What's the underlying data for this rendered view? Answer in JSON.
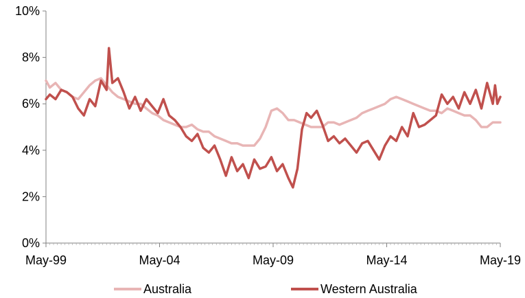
{
  "chart_data": {
    "type": "line",
    "title": "",
    "xlabel": "",
    "ylabel": "",
    "x_ticks": [
      "May-99",
      "May-04",
      "May-09",
      "May-14",
      "May-19"
    ],
    "y_ticks": [
      "0%",
      "2%",
      "4%",
      "6%",
      "8%",
      "10%"
    ],
    "ylim": [
      0,
      10
    ],
    "xlim": [
      1999.33,
      2019.33
    ],
    "grid": false,
    "legend_position": "bottom",
    "series": [
      {
        "name": "Australia",
        "color": "#e8b5b5",
        "points": [
          [
            1999.33,
            7.0
          ],
          [
            1999.5,
            6.7
          ],
          [
            1999.75,
            6.9
          ],
          [
            2000.0,
            6.6
          ],
          [
            2000.25,
            6.5
          ],
          [
            2000.5,
            6.3
          ],
          [
            2000.75,
            6.2
          ],
          [
            2001.0,
            6.5
          ],
          [
            2001.25,
            6.8
          ],
          [
            2001.5,
            7.0
          ],
          [
            2001.75,
            7.1
          ],
          [
            2002.0,
            6.8
          ],
          [
            2002.25,
            6.5
          ],
          [
            2002.5,
            6.3
          ],
          [
            2002.75,
            6.2
          ],
          [
            2003.0,
            6.1
          ],
          [
            2003.25,
            6.0
          ],
          [
            2003.5,
            6.0
          ],
          [
            2003.75,
            5.8
          ],
          [
            2004.0,
            5.6
          ],
          [
            2004.25,
            5.5
          ],
          [
            2004.5,
            5.3
          ],
          [
            2004.75,
            5.2
          ],
          [
            2005.0,
            5.1
          ],
          [
            2005.25,
            5.0
          ],
          [
            2005.5,
            5.0
          ],
          [
            2005.75,
            5.1
          ],
          [
            2006.0,
            4.9
          ],
          [
            2006.25,
            4.8
          ],
          [
            2006.5,
            4.8
          ],
          [
            2006.75,
            4.6
          ],
          [
            2007.0,
            4.5
          ],
          [
            2007.25,
            4.4
          ],
          [
            2007.5,
            4.3
          ],
          [
            2007.75,
            4.3
          ],
          [
            2008.0,
            4.2
          ],
          [
            2008.25,
            4.2
          ],
          [
            2008.5,
            4.2
          ],
          [
            2008.75,
            4.5
          ],
          [
            2009.0,
            5.0
          ],
          [
            2009.25,
            5.7
          ],
          [
            2009.5,
            5.8
          ],
          [
            2009.75,
            5.6
          ],
          [
            2010.0,
            5.3
          ],
          [
            2010.25,
            5.3
          ],
          [
            2010.5,
            5.2
          ],
          [
            2010.75,
            5.1
          ],
          [
            2011.0,
            5.0
          ],
          [
            2011.25,
            5.0
          ],
          [
            2011.5,
            5.0
          ],
          [
            2011.75,
            5.2
          ],
          [
            2012.0,
            5.2
          ],
          [
            2012.25,
            5.1
          ],
          [
            2012.5,
            5.2
          ],
          [
            2012.75,
            5.3
          ],
          [
            2013.0,
            5.4
          ],
          [
            2013.25,
            5.6
          ],
          [
            2013.5,
            5.7
          ],
          [
            2013.75,
            5.8
          ],
          [
            2014.0,
            5.9
          ],
          [
            2014.25,
            6.0
          ],
          [
            2014.5,
            6.2
          ],
          [
            2014.75,
            6.3
          ],
          [
            2015.0,
            6.2
          ],
          [
            2015.25,
            6.1
          ],
          [
            2015.5,
            6.0
          ],
          [
            2015.75,
            5.9
          ],
          [
            2016.0,
            5.8
          ],
          [
            2016.25,
            5.7
          ],
          [
            2016.5,
            5.7
          ],
          [
            2016.75,
            5.6
          ],
          [
            2017.0,
            5.8
          ],
          [
            2017.25,
            5.7
          ],
          [
            2017.5,
            5.6
          ],
          [
            2017.75,
            5.5
          ],
          [
            2018.0,
            5.5
          ],
          [
            2018.25,
            5.3
          ],
          [
            2018.5,
            5.0
          ],
          [
            2018.75,
            5.0
          ],
          [
            2019.0,
            5.2
          ],
          [
            2019.33,
            5.2
          ]
        ]
      },
      {
        "name": "Western Australia",
        "color": "#c0504d",
        "points": [
          [
            1999.33,
            6.2
          ],
          [
            1999.5,
            6.4
          ],
          [
            1999.75,
            6.2
          ],
          [
            2000.0,
            6.6
          ],
          [
            2000.25,
            6.5
          ],
          [
            2000.5,
            6.3
          ],
          [
            2000.75,
            5.8
          ],
          [
            2001.0,
            5.5
          ],
          [
            2001.25,
            6.2
          ],
          [
            2001.5,
            5.9
          ],
          [
            2001.75,
            7.0
          ],
          [
            2002.0,
            6.6
          ],
          [
            2002.1,
            8.4
          ],
          [
            2002.25,
            6.9
          ],
          [
            2002.5,
            7.1
          ],
          [
            2002.75,
            6.5
          ],
          [
            2003.0,
            5.8
          ],
          [
            2003.25,
            6.3
          ],
          [
            2003.5,
            5.7
          ],
          [
            2003.75,
            6.2
          ],
          [
            2004.0,
            5.9
          ],
          [
            2004.25,
            5.6
          ],
          [
            2004.5,
            6.2
          ],
          [
            2004.75,
            5.5
          ],
          [
            2005.0,
            5.3
          ],
          [
            2005.25,
            5.0
          ],
          [
            2005.5,
            4.6
          ],
          [
            2005.75,
            4.4
          ],
          [
            2006.0,
            4.7
          ],
          [
            2006.25,
            4.1
          ],
          [
            2006.5,
            3.9
          ],
          [
            2006.75,
            4.2
          ],
          [
            2007.0,
            3.6
          ],
          [
            2007.25,
            2.9
          ],
          [
            2007.5,
            3.7
          ],
          [
            2007.75,
            3.1
          ],
          [
            2008.0,
            3.4
          ],
          [
            2008.25,
            2.8
          ],
          [
            2008.5,
            3.6
          ],
          [
            2008.75,
            3.2
          ],
          [
            2009.0,
            3.3
          ],
          [
            2009.25,
            3.7
          ],
          [
            2009.5,
            3.1
          ],
          [
            2009.75,
            3.4
          ],
          [
            2010.0,
            2.8
          ],
          [
            2010.2,
            2.4
          ],
          [
            2010.4,
            3.2
          ],
          [
            2010.6,
            4.9
          ],
          [
            2010.8,
            5.6
          ],
          [
            2011.0,
            5.4
          ],
          [
            2011.25,
            5.7
          ],
          [
            2011.5,
            5.1
          ],
          [
            2011.75,
            4.4
          ],
          [
            2012.0,
            4.6
          ],
          [
            2012.25,
            4.3
          ],
          [
            2012.5,
            4.5
          ],
          [
            2012.75,
            4.2
          ],
          [
            2013.0,
            3.9
          ],
          [
            2013.25,
            4.3
          ],
          [
            2013.5,
            4.4
          ],
          [
            2013.75,
            4.0
          ],
          [
            2014.0,
            3.6
          ],
          [
            2014.25,
            4.2
          ],
          [
            2014.5,
            4.6
          ],
          [
            2014.75,
            4.4
          ],
          [
            2015.0,
            5.0
          ],
          [
            2015.25,
            4.6
          ],
          [
            2015.5,
            5.6
          ],
          [
            2015.75,
            5.0
          ],
          [
            2016.0,
            5.1
          ],
          [
            2016.25,
            5.3
          ],
          [
            2016.5,
            5.5
          ],
          [
            2016.75,
            6.4
          ],
          [
            2017.0,
            6.0
          ],
          [
            2017.25,
            6.3
          ],
          [
            2017.5,
            5.8
          ],
          [
            2017.75,
            6.5
          ],
          [
            2018.0,
            6.0
          ],
          [
            2018.25,
            6.6
          ],
          [
            2018.5,
            5.8
          ],
          [
            2018.75,
            6.9
          ],
          [
            2019.0,
            6.0
          ],
          [
            2019.1,
            6.8
          ],
          [
            2019.2,
            6.0
          ],
          [
            2019.33,
            6.3
          ]
        ]
      }
    ]
  }
}
